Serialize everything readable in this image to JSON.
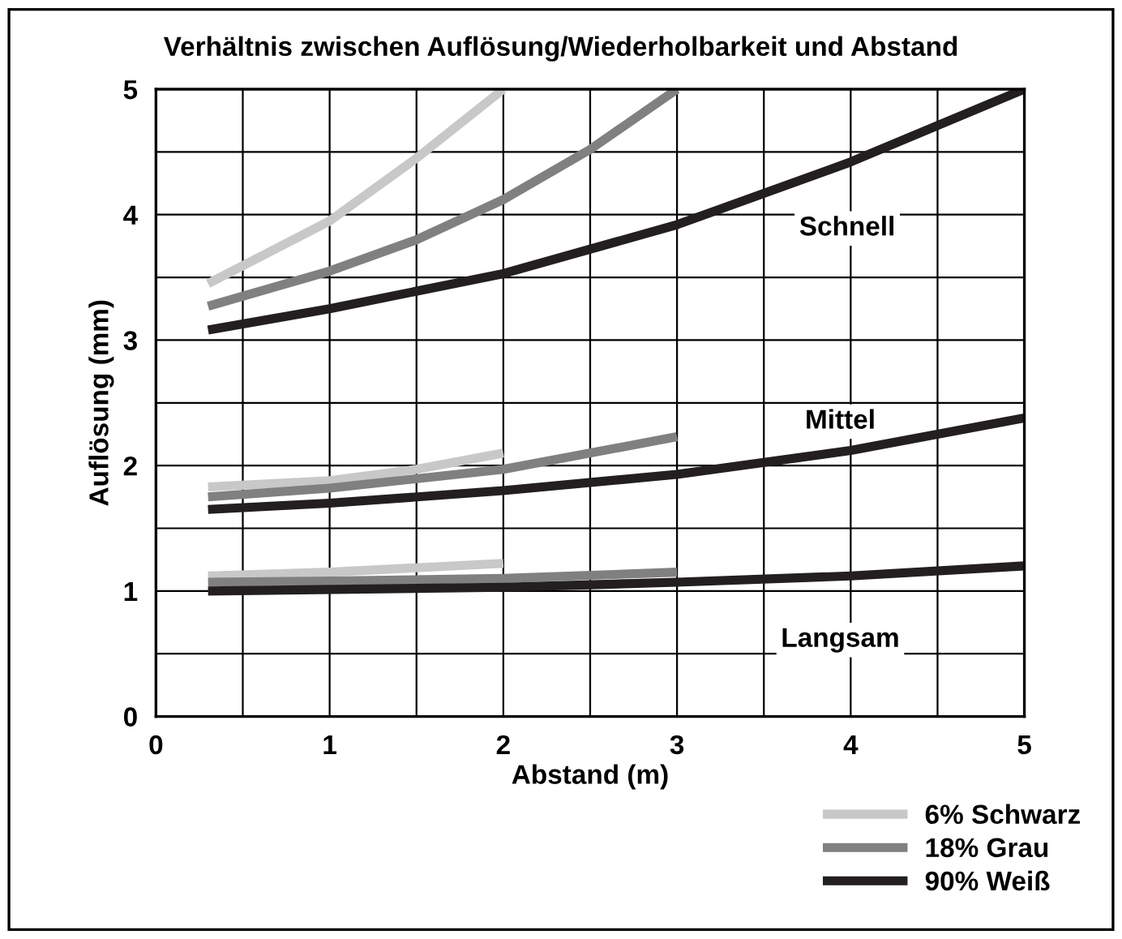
{
  "chart_data": {
    "type": "line",
    "title": "Verhältnis zwischen Auflösung/Wiederholbarkeit und Abstand",
    "xlabel": "Abstand (m)",
    "ylabel": "Auflösung (mm)",
    "xlim": [
      0,
      5
    ],
    "ylim": [
      0,
      5
    ],
    "xticks": [
      0,
      {
        "value": 0.5,
        "label": null
      },
      1,
      {
        "value": 1.5,
        "label": null
      },
      2,
      {
        "value": 2.5,
        "label": null
      },
      3,
      {
        "value": 3.5,
        "label": null
      },
      4,
      {
        "value": 4.5,
        "label": null
      },
      5
    ],
    "yticks": [
      0,
      {
        "value": 0.5,
        "label": null
      },
      1,
      {
        "value": 1.5,
        "label": null
      },
      2,
      {
        "value": 2.5,
        "label": null
      },
      3,
      {
        "value": 3.5,
        "label": null
      },
      4,
      {
        "value": 4.5,
        "label": null
      },
      5
    ],
    "grid": true,
    "legend": "bottom right",
    "line_style": "solid",
    "marker": "none",
    "annotations": [
      "Schnell",
      "Mittel",
      "Langsam"
    ],
    "series": [
      {
        "name": "6% Schwarz",
        "color": "#c8c8c8",
        "x": [
          0.3,
          1,
          1.5,
          2
        ],
        "values": [
          3.45,
          3.95,
          4.45,
          5.0
        ]
      },
      {
        "name": "18% Grau",
        "color": "#808080",
        "x": [
          0.3,
          1,
          1.5,
          2,
          2.5,
          3
        ],
        "values": [
          3.27,
          3.55,
          3.8,
          4.12,
          4.52,
          5.0
        ]
      },
      {
        "name": "90% Weiß",
        "color": "#231f20",
        "x": [
          0.3,
          1,
          2,
          3,
          4,
          5
        ],
        "values": [
          3.08,
          3.25,
          3.53,
          3.92,
          4.42,
          5.0
        ]
      },
      {
        "color": "#c8c8c8",
        "x": [
          0.3,
          1,
          1.5,
          2
        ],
        "values": [
          1.83,
          1.88,
          1.97,
          2.1
        ]
      },
      {
        "color": "#808080",
        "x": [
          0.3,
          1,
          2,
          3
        ],
        "values": [
          1.75,
          1.82,
          1.97,
          2.23
        ]
      },
      {
        "color": "#231f20",
        "x": [
          0.3,
          1,
          2,
          3,
          4,
          5
        ],
        "values": [
          1.65,
          1.7,
          1.8,
          1.93,
          2.12,
          2.38
        ]
      },
      {
        "color": "#c8c8c8",
        "x": [
          0.3,
          1,
          2
        ],
        "values": [
          1.12,
          1.15,
          1.22
        ]
      },
      {
        "color": "#808080",
        "x": [
          0.3,
          1,
          2,
          3
        ],
        "values": [
          1.07,
          1.08,
          1.1,
          1.15
        ]
      },
      {
        "color": "#231f20",
        "x": [
          0.3,
          2,
          3,
          4,
          5
        ],
        "values": [
          1.0,
          1.03,
          1.07,
          1.12,
          1.2
        ]
      }
    ]
  }
}
